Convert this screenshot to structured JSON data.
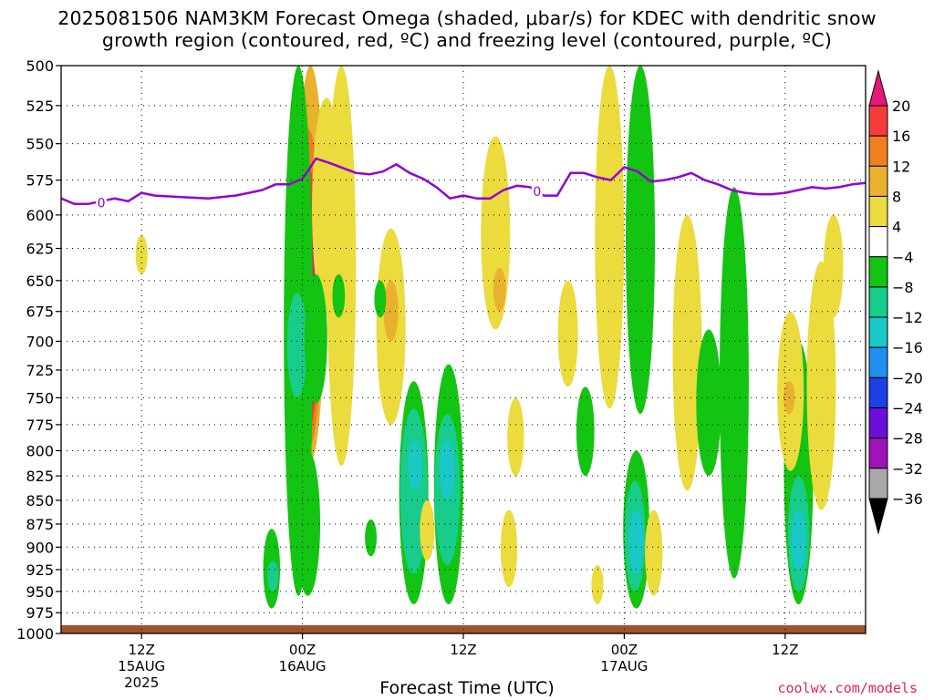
{
  "chart_data": {
    "type": "heatmap",
    "title_line1": "2025081506 NAM3KM Forecast Omega (shaded, μbar/s) for KDEC with dendritic snow",
    "title_line2": "growth region (contoured, red, ºC) and freezing level (contoured, purple, ºC)",
    "xlabel": "Forecast Time (UTC)",
    "ylabel": "",
    "y_axis": {
      "scale": "log-pressure",
      "reversed": true,
      "range_mb": [
        1000,
        500
      ],
      "ticks": [
        500,
        525,
        550,
        575,
        600,
        625,
        650,
        675,
        700,
        725,
        750,
        775,
        800,
        825,
        850,
        875,
        900,
        925,
        950,
        975,
        1000
      ]
    },
    "x_axis": {
      "range_hours": [
        6,
        66
      ],
      "ticks": [
        {
          "hour": 12,
          "label": "12Z",
          "sub": [
            "15AUG",
            "2025"
          ]
        },
        {
          "hour": 24,
          "label": "00Z",
          "sub": [
            "16AUG"
          ]
        },
        {
          "hour": 36,
          "label": "12Z",
          "sub": []
        },
        {
          "hour": 48,
          "label": "00Z",
          "sub": [
            "17AUG"
          ]
        },
        {
          "hour": 60,
          "label": "12Z",
          "sub": []
        }
      ]
    },
    "grid": true,
    "colorbar": {
      "placement": "right",
      "labels": [
        "20",
        "16",
        "12",
        "8",
        "4",
        "−4",
        "−8",
        "−12",
        "−16",
        "−20",
        "−24",
        "−28",
        "−32",
        "−36"
      ],
      "colors": [
        "#e8177a",
        "#f43c3c",
        "#f07f20",
        "#e8b22e",
        "#ebdb3c",
        "#ffffff",
        "#13c413",
        "#18cc8c",
        "#1ac8c8",
        "#2090f0",
        "#1e3ee8",
        "#6a0fd8",
        "#a013b8",
        "#a8a8a8",
        "#000000"
      ]
    },
    "freezing_level": {
      "color": "#9400d3",
      "label": "0",
      "points_hour_mb": [
        [
          6,
          588
        ],
        [
          7,
          592
        ],
        [
          8,
          592
        ],
        [
          9,
          590
        ],
        [
          10,
          588
        ],
        [
          11,
          590
        ],
        [
          12,
          584
        ],
        [
          13,
          586
        ],
        [
          15,
          587
        ],
        [
          17,
          588
        ],
        [
          19,
          586
        ],
        [
          20,
          584
        ],
        [
          21,
          582
        ],
        [
          22,
          578
        ],
        [
          23,
          578
        ],
        [
          24,
          574
        ],
        [
          24.6,
          566
        ],
        [
          25,
          560
        ],
        [
          26,
          563
        ],
        [
          28,
          570
        ],
        [
          29,
          571
        ],
        [
          30,
          569
        ],
        [
          31,
          564
        ],
        [
          32,
          570
        ],
        [
          33,
          574
        ],
        [
          34,
          580
        ],
        [
          35,
          588
        ],
        [
          36,
          586
        ],
        [
          37,
          588
        ],
        [
          38,
          588
        ],
        [
          39,
          582
        ],
        [
          40,
          579
        ],
        [
          41,
          580
        ],
        [
          42,
          586
        ],
        [
          43,
          586
        ],
        [
          44,
          570
        ],
        [
          45,
          570
        ],
        [
          46,
          573
        ],
        [
          47,
          575
        ],
        [
          48,
          566
        ],
        [
          49,
          569
        ],
        [
          50,
          576
        ],
        [
          51,
          575
        ],
        [
          52,
          573
        ],
        [
          53,
          570
        ],
        [
          54,
          575
        ],
        [
          55,
          578
        ],
        [
          56,
          582
        ],
        [
          57,
          584
        ],
        [
          58,
          585
        ],
        [
          59,
          585
        ],
        [
          60,
          584
        ],
        [
          61,
          582
        ],
        [
          62,
          580
        ],
        [
          63,
          581
        ],
        [
          64,
          580
        ],
        [
          65,
          578
        ],
        [
          66,
          577
        ]
      ]
    },
    "omega_areas": [
      {
        "category": "4",
        "hour": 26.9,
        "bottom_mb": 815,
        "top_mb": 500
      },
      {
        "category": "8",
        "hour": 24.6,
        "bottom_mb": 810,
        "top_mb": 500
      },
      {
        "category": "12",
        "hour": 24.4,
        "bottom_mb": 800,
        "top_mb": 540
      },
      {
        "category": "16",
        "hour": 24.2,
        "bottom_mb": 790,
        "top_mb": 560
      },
      {
        "category": "20",
        "hour": 24.1,
        "bottom_mb": 780,
        "top_mb": 590
      },
      {
        "category": "4",
        "hour": 25.8,
        "bottom_mb": 680,
        "top_mb": 520
      },
      {
        "category": "4",
        "hour": 12.0,
        "bottom_mb": 645,
        "top_mb": 615
      },
      {
        "category": "-4",
        "hour": 23.7,
        "bottom_mb": 955,
        "top_mb": 500
      },
      {
        "category": "-4",
        "hour": 24.4,
        "bottom_mb": 955,
        "top_mb": 800
      },
      {
        "category": "-8",
        "hour": 23.6,
        "bottom_mb": 750,
        "top_mb": 660
      },
      {
        "category": "-4",
        "hour": 21.7,
        "bottom_mb": 970,
        "top_mb": 880
      },
      {
        "category": "-8",
        "hour": 21.8,
        "bottom_mb": 950,
        "top_mb": 915
      },
      {
        "category": "-4",
        "hour": 25.0,
        "bottom_mb": 755,
        "top_mb": 645
      },
      {
        "category": "-4",
        "hour": 26.7,
        "bottom_mb": 680,
        "top_mb": 645
      },
      {
        "category": "-4",
        "hour": 29.1,
        "bottom_mb": 910,
        "top_mb": 870
      },
      {
        "category": "4",
        "hour": 30.6,
        "bottom_mb": 775,
        "top_mb": 610
      },
      {
        "category": "8",
        "hour": 30.6,
        "bottom_mb": 700,
        "top_mb": 650
      },
      {
        "category": "-4",
        "hour": 29.8,
        "bottom_mb": 680,
        "top_mb": 650
      },
      {
        "category": "-4",
        "hour": 32.3,
        "bottom_mb": 965,
        "top_mb": 735
      },
      {
        "category": "-8",
        "hour": 32.3,
        "bottom_mb": 930,
        "top_mb": 760
      },
      {
        "category": "-12",
        "hour": 32.4,
        "bottom_mb": 840,
        "top_mb": 790
      },
      {
        "category": "-4",
        "hour": 34.9,
        "bottom_mb": 965,
        "top_mb": 720
      },
      {
        "category": "-8",
        "hour": 34.8,
        "bottom_mb": 920,
        "top_mb": 765
      },
      {
        "category": "-12",
        "hour": 34.8,
        "bottom_mb": 850,
        "top_mb": 790
      },
      {
        "category": "4",
        "hour": 33.3,
        "bottom_mb": 915,
        "top_mb": 850
      },
      {
        "category": "4",
        "hour": 38.4,
        "bottom_mb": 690,
        "top_mb": 545
      },
      {
        "category": "8",
        "hour": 38.7,
        "bottom_mb": 675,
        "top_mb": 640
      },
      {
        "category": "4",
        "hour": 39.9,
        "bottom_mb": 825,
        "top_mb": 750
      },
      {
        "category": "4",
        "hour": 39.4,
        "bottom_mb": 945,
        "top_mb": 860
      },
      {
        "category": "4",
        "hour": 43.8,
        "bottom_mb": 740,
        "top_mb": 650
      },
      {
        "category": "-4",
        "hour": 45.1,
        "bottom_mb": 825,
        "top_mb": 740
      },
      {
        "category": "4",
        "hour": 46.0,
        "bottom_mb": 965,
        "top_mb": 920
      },
      {
        "category": "4",
        "hour": 46.9,
        "bottom_mb": 760,
        "top_mb": 500
      },
      {
        "category": "-4",
        "hour": 49.2,
        "bottom_mb": 765,
        "top_mb": 500
      },
      {
        "category": "-4",
        "hour": 48.9,
        "bottom_mb": 970,
        "top_mb": 800
      },
      {
        "category": "-8",
        "hour": 48.8,
        "bottom_mb": 950,
        "top_mb": 830
      },
      {
        "category": "-12",
        "hour": 48.9,
        "bottom_mb": 930,
        "top_mb": 860
      },
      {
        "category": "4",
        "hour": 50.2,
        "bottom_mb": 955,
        "top_mb": 860
      },
      {
        "category": "4",
        "hour": 52.7,
        "bottom_mb": 840,
        "top_mb": 600
      },
      {
        "category": "-4",
        "hour": 56.2,
        "bottom_mb": 935,
        "top_mb": 580
      },
      {
        "category": "-4",
        "hour": 54.3,
        "bottom_mb": 825,
        "top_mb": 690
      },
      {
        "category": "-4",
        "hour": 61.0,
        "bottom_mb": 965,
        "top_mb": 700
      },
      {
        "category": "-8",
        "hour": 61.0,
        "bottom_mb": 950,
        "top_mb": 825
      },
      {
        "category": "-12",
        "hour": 61.0,
        "bottom_mb": 925,
        "top_mb": 860
      },
      {
        "category": "4",
        "hour": 60.4,
        "bottom_mb": 820,
        "top_mb": 675
      },
      {
        "category": "8",
        "hour": 60.3,
        "bottom_mb": 765,
        "top_mb": 735
      },
      {
        "category": "4",
        "hour": 62.7,
        "bottom_mb": 860,
        "top_mb": 635
      },
      {
        "category": "4",
        "hour": 63.6,
        "bottom_mb": 680,
        "top_mb": 600
      }
    ],
    "surface_band": {
      "color": "#a0522d",
      "mb_top": 990
    }
  },
  "footer": {
    "credit": "coolwx.com/models"
  }
}
